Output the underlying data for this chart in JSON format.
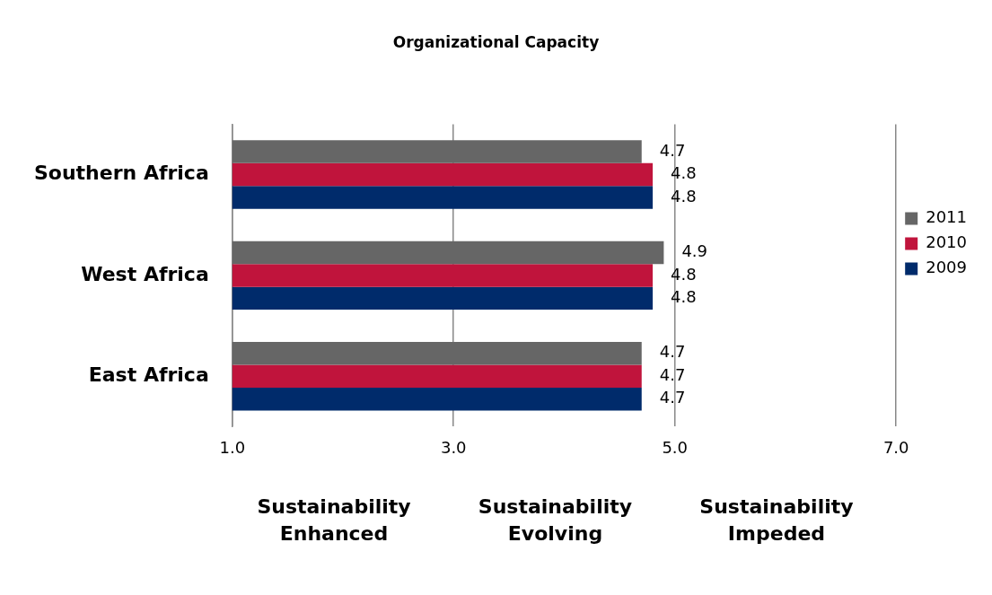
{
  "chart_data": {
    "type": "bar",
    "orientation": "horizontal",
    "title": "Organizational Capacity",
    "categories": [
      "Southern Africa",
      "West Africa",
      "East Africa"
    ],
    "series": [
      {
        "name": "2011",
        "color": "#666666",
        "values": [
          4.7,
          4.9,
          4.7
        ]
      },
      {
        "name": "2010",
        "color": "#c0143c",
        "values": [
          4.8,
          4.8,
          4.7
        ]
      },
      {
        "name": "2009",
        "color": "#002b6b",
        "values": [
          4.8,
          4.8,
          4.7
        ]
      }
    ],
    "xlim": [
      1,
      7
    ],
    "xticks": [
      {
        "value": 1,
        "label": "1.0"
      },
      {
        "value": 3,
        "label": "3.0"
      },
      {
        "value": 5,
        "label": "5.0"
      },
      {
        "value": 7,
        "label": "7.0"
      }
    ],
    "grid": "x",
    "legend": "right",
    "data_labels": true,
    "annotations": [
      "Sustainability Enhanced",
      "Sustainability Evolving",
      "Sustainability Impeded"
    ]
  }
}
